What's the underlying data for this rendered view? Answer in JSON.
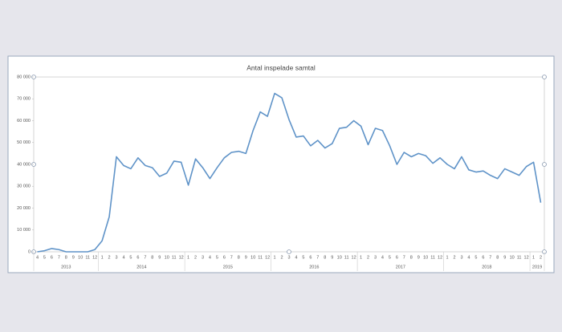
{
  "chart_data": {
    "type": "line",
    "title": "Antal inspelade samtal",
    "categories": [
      "4",
      "5",
      "6",
      "7",
      "8",
      "9",
      "10",
      "11",
      "12",
      "1",
      "2",
      "3",
      "4",
      "5",
      "6",
      "7",
      "8",
      "9",
      "10",
      "11",
      "12",
      "1",
      "2",
      "3",
      "4",
      "5",
      "6",
      "7",
      "8",
      "9",
      "10",
      "11",
      "12",
      "1",
      "2",
      "3",
      "4",
      "5",
      "6",
      "7",
      "8",
      "9",
      "10",
      "11",
      "12",
      "1",
      "2",
      "3",
      "4",
      "5",
      "6",
      "7",
      "8",
      "9",
      "10",
      "11",
      "12",
      "1",
      "2",
      "3",
      "4",
      "5",
      "6",
      "7",
      "8",
      "9",
      "10",
      "11",
      "12",
      "1",
      "2"
    ],
    "years": [
      "2013",
      "2013",
      "2013",
      "2013",
      "2013",
      "2013",
      "2013",
      "2013",
      "2013",
      "2014",
      "2014",
      "2014",
      "2014",
      "2014",
      "2014",
      "2014",
      "2014",
      "2014",
      "2014",
      "2014",
      "2014",
      "2015",
      "2015",
      "2015",
      "2015",
      "2015",
      "2015",
      "2015",
      "2015",
      "2015",
      "2015",
      "2015",
      "2015",
      "2016",
      "2016",
      "2016",
      "2016",
      "2016",
      "2016",
      "2016",
      "2016",
      "2016",
      "2016",
      "2016",
      "2016",
      "2017",
      "2017",
      "2017",
      "2017",
      "2017",
      "2017",
      "2017",
      "2017",
      "2017",
      "2017",
      "2017",
      "2017",
      "2018",
      "2018",
      "2018",
      "2018",
      "2018",
      "2018",
      "2018",
      "2018",
      "2018",
      "2018",
      "2018",
      "2018",
      "2019",
      "2019"
    ],
    "series": [
      {
        "color": "#5f93c8",
        "values": [
          0,
          500,
          1500,
          1000,
          0,
          0,
          0,
          0,
          1000,
          5000,
          16000,
          43500,
          39500,
          38000,
          43000,
          39500,
          38500,
          34500,
          36000,
          41500,
          41000,
          30500,
          42500,
          38500,
          33500,
          38500,
          43000,
          45500,
          46000,
          45000,
          55500,
          64000,
          62000,
          72500,
          70500,
          60500,
          52500,
          53000,
          48500,
          51000,
          47500,
          49500,
          56500,
          57000,
          60000,
          57500,
          49000,
          56500,
          55500,
          48500,
          40000,
          45500,
          43500,
          45000,
          44000,
          40500,
          43000,
          40000,
          38000,
          43500,
          37500,
          36500,
          37000,
          35000,
          33500,
          38000,
          36500,
          35000,
          39000,
          41000,
          22500
        ]
      }
    ],
    "ylim": [
      0,
      80000
    ],
    "yticks": [
      {
        "value": 0,
        "label": "0"
      },
      {
        "value": 10000,
        "label": "10 000"
      },
      {
        "value": 20000,
        "label": "20 000"
      },
      {
        "value": 30000,
        "label": "30 000"
      },
      {
        "value": 40000,
        "label": "40 000"
      },
      {
        "value": 50000,
        "label": "50 000"
      },
      {
        "value": 60000,
        "label": "60 000"
      },
      {
        "value": 70000,
        "label": "70 000"
      },
      {
        "value": 80000,
        "label": "80 000"
      }
    ],
    "grid": false
  }
}
